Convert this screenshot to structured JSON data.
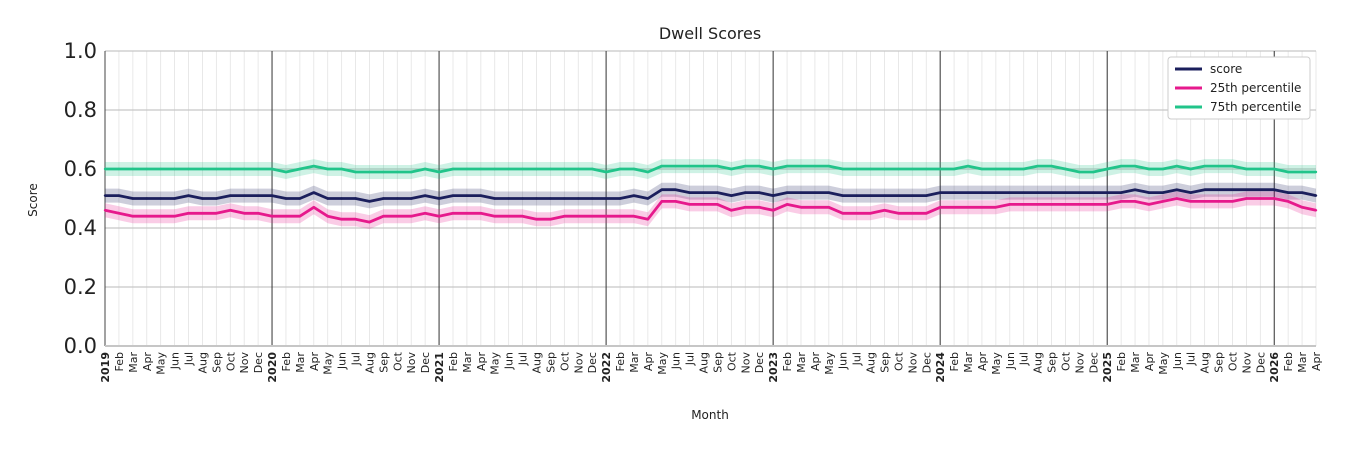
{
  "chart_data": {
    "type": "line",
    "title": "Dwell Scores",
    "xlabel": "Month",
    "ylabel": "Score",
    "ylim": [
      0.0,
      1.0
    ],
    "yticks": [
      "0.0",
      "0.2",
      "0.4",
      "0.6",
      "0.8",
      "1.0"
    ],
    "grid": true,
    "legend_position": "top-right",
    "x_start": "2019-01",
    "x": [
      "2019",
      "Feb",
      "Mar",
      "Apr",
      "May",
      "Jun",
      "Jul",
      "Aug",
      "Sep",
      "Oct",
      "Nov",
      "Dec",
      "2020",
      "Feb",
      "Mar",
      "Apr",
      "May",
      "Jun",
      "Jul",
      "Aug",
      "Sep",
      "Oct",
      "Nov",
      "Dec",
      "2021",
      "Feb",
      "Mar",
      "Apr",
      "May",
      "Jun",
      "Jul",
      "Aug",
      "Sep",
      "Oct",
      "Nov",
      "Dec",
      "2022",
      "Feb",
      "Mar",
      "Apr",
      "May",
      "Jun",
      "Jul",
      "Aug",
      "Sep",
      "Oct",
      "Nov",
      "Dec",
      "2023",
      "Feb",
      "Mar",
      "Apr",
      "May",
      "Jun",
      "Jul",
      "Aug",
      "Sep",
      "Oct",
      "Nov",
      "Dec",
      "2024",
      "Feb",
      "Mar",
      "Apr",
      "May",
      "Jun",
      "Jul",
      "Aug",
      "Sep",
      "Oct",
      "Nov",
      "Dec",
      "2025",
      "Feb",
      "Mar",
      "Apr",
      "May",
      "Jun",
      "Jul",
      "Aug",
      "Sep",
      "Oct",
      "Nov",
      "Dec",
      "2026",
      "Feb",
      "Mar",
      "Apr"
    ],
    "series": [
      {
        "name": "score",
        "color": "#1b1f5c",
        "values": [
          0.51,
          0.51,
          0.5,
          0.5,
          0.5,
          0.5,
          0.51,
          0.5,
          0.5,
          0.51,
          0.51,
          0.51,
          0.51,
          0.5,
          0.5,
          0.52,
          0.5,
          0.5,
          0.5,
          0.49,
          0.5,
          0.5,
          0.5,
          0.51,
          0.5,
          0.51,
          0.51,
          0.51,
          0.5,
          0.5,
          0.5,
          0.5,
          0.5,
          0.5,
          0.5,
          0.5,
          0.5,
          0.5,
          0.51,
          0.5,
          0.53,
          0.53,
          0.52,
          0.52,
          0.52,
          0.51,
          0.52,
          0.52,
          0.51,
          0.52,
          0.52,
          0.52,
          0.52,
          0.51,
          0.51,
          0.51,
          0.51,
          0.51,
          0.51,
          0.51,
          0.52,
          0.52,
          0.52,
          0.52,
          0.52,
          0.52,
          0.52,
          0.52,
          0.52,
          0.52,
          0.52,
          0.52,
          0.52,
          0.52,
          0.53,
          0.52,
          0.52,
          0.53,
          0.52,
          0.53,
          0.53,
          0.53,
          0.53,
          0.53,
          0.53,
          0.52,
          0.52,
          0.51
        ]
      },
      {
        "name": "25th percentile",
        "color": "#e6198c",
        "values": [
          0.46,
          0.45,
          0.44,
          0.44,
          0.44,
          0.44,
          0.45,
          0.45,
          0.45,
          0.46,
          0.45,
          0.45,
          0.44,
          0.44,
          0.44,
          0.47,
          0.44,
          0.43,
          0.43,
          0.42,
          0.44,
          0.44,
          0.44,
          0.45,
          0.44,
          0.45,
          0.45,
          0.45,
          0.44,
          0.44,
          0.44,
          0.43,
          0.43,
          0.44,
          0.44,
          0.44,
          0.44,
          0.44,
          0.44,
          0.43,
          0.49,
          0.49,
          0.48,
          0.48,
          0.48,
          0.46,
          0.47,
          0.47,
          0.46,
          0.48,
          0.47,
          0.47,
          0.47,
          0.45,
          0.45,
          0.45,
          0.46,
          0.45,
          0.45,
          0.45,
          0.47,
          0.47,
          0.47,
          0.47,
          0.47,
          0.48,
          0.48,
          0.48,
          0.48,
          0.48,
          0.48,
          0.48,
          0.48,
          0.49,
          0.49,
          0.48,
          0.49,
          0.5,
          0.49,
          0.49,
          0.49,
          0.49,
          0.5,
          0.5,
          0.5,
          0.49,
          0.47,
          0.46
        ]
      },
      {
        "name": "75th percentile",
        "color": "#21c48a",
        "values": [
          0.6,
          0.6,
          0.6,
          0.6,
          0.6,
          0.6,
          0.6,
          0.6,
          0.6,
          0.6,
          0.6,
          0.6,
          0.6,
          0.59,
          0.6,
          0.61,
          0.6,
          0.6,
          0.59,
          0.59,
          0.59,
          0.59,
          0.59,
          0.6,
          0.59,
          0.6,
          0.6,
          0.6,
          0.6,
          0.6,
          0.6,
          0.6,
          0.6,
          0.6,
          0.6,
          0.6,
          0.59,
          0.6,
          0.6,
          0.59,
          0.61,
          0.61,
          0.61,
          0.61,
          0.61,
          0.6,
          0.61,
          0.61,
          0.6,
          0.61,
          0.61,
          0.61,
          0.61,
          0.6,
          0.6,
          0.6,
          0.6,
          0.6,
          0.6,
          0.6,
          0.6,
          0.6,
          0.61,
          0.6,
          0.6,
          0.6,
          0.6,
          0.61,
          0.61,
          0.6,
          0.59,
          0.59,
          0.6,
          0.61,
          0.61,
          0.6,
          0.6,
          0.61,
          0.6,
          0.61,
          0.61,
          0.61,
          0.6,
          0.6,
          0.6,
          0.59,
          0.59,
          0.59
        ]
      }
    ]
  }
}
